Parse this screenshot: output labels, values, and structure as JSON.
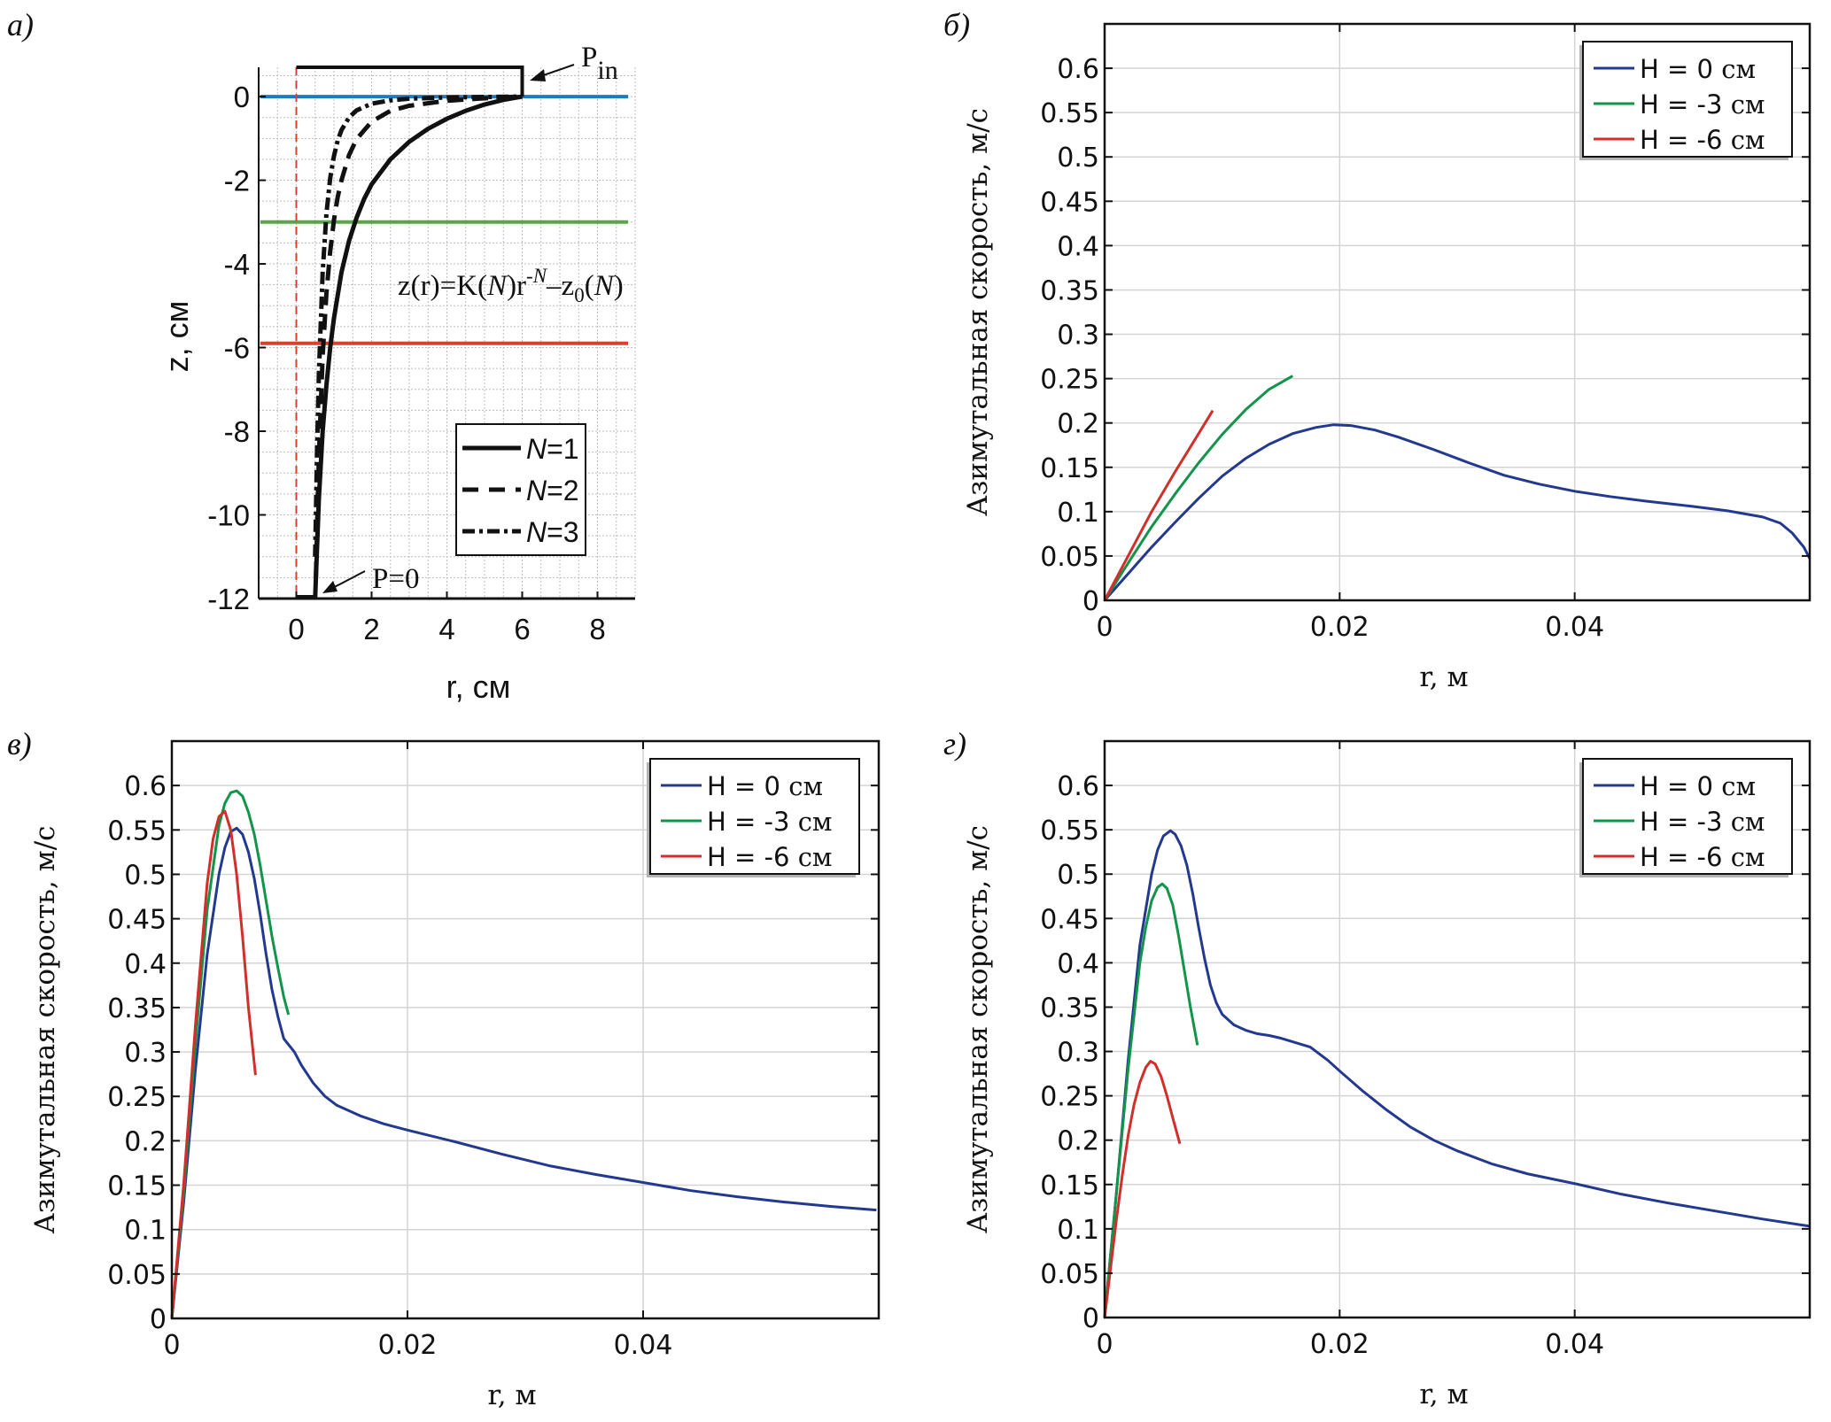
{
  "figure": {
    "panel_labels": [
      "a)",
      "б)",
      "в)",
      "г)"
    ]
  },
  "chart_data": [
    {
      "id": "a",
      "type": "line",
      "panel_label": "a)",
      "title": "",
      "xlabel": "r, см",
      "ylabel": "z, см",
      "xlim": [
        -1,
        9
      ],
      "ylim": [
        -12,
        0.7
      ],
      "xticks": [
        0,
        2,
        4,
        6,
        8
      ],
      "yticks": [
        0,
        -2,
        -4,
        -6,
        -8,
        -10,
        -12
      ],
      "grid": "major+minor (0.5 cm)",
      "equation": "z(r)=K(N)r^-N–z0(N)",
      "equation_parts": {
        "lhs": "z(r)=K(",
        "N1": "N",
        "mid": ")r",
        "sup": "-N",
        "minus": "–z",
        "sub": "0",
        "open": "(",
        "N2": "N",
        "close": ")"
      },
      "annotations": [
        {
          "text": "P",
          "sub": "in",
          "at": [
            6,
            0.35
          ]
        },
        {
          "text": "P=0",
          "at": [
            0.5,
            -12
          ]
        }
      ],
      "horizontal_lines": [
        {
          "name": "H = 0 см",
          "z": 0,
          "color": "#1f7bbf"
        },
        {
          "name": "H = -3 см",
          "z": -3,
          "color": "#5aa546"
        },
        {
          "name": "H = -6 см",
          "z": -5.9,
          "color": "#d9412f"
        }
      ],
      "axis_line": {
        "r": 0,
        "style": "dashed",
        "color": "#d9412f"
      },
      "boundary": {
        "top_z": 0.7,
        "top_r": [
          0,
          6
        ],
        "inlet_r": 6,
        "inlet_z": [
          0,
          0.7
        ],
        "bottom_z": -12,
        "bottom_r": [
          0,
          0.5
        ]
      },
      "legend": {
        "position": "lower-right",
        "entries": [
          {
            "label_italic": "N",
            "label_rest": "=1",
            "style": "solid"
          },
          {
            "label_italic": "N",
            "label_rest": "=2",
            "style": "dashed"
          },
          {
            "label_italic": "N",
            "label_rest": "=3",
            "style": "dashdot"
          }
        ]
      },
      "series": [
        {
          "name": "N=1",
          "style": "solid",
          "x": [
            0.5,
            0.6,
            0.7,
            0.8,
            0.9,
            1.0,
            1.2,
            1.4,
            1.6,
            1.8,
            2.0,
            2.5,
            3.0,
            3.5,
            4.0,
            4.5,
            5.0,
            5.5,
            6.0
          ],
          "y": [
            -12,
            -9.6,
            -8.0,
            -6.9,
            -6.0,
            -5.3,
            -4.2,
            -3.45,
            -2.9,
            -2.45,
            -2.1,
            -1.5,
            -1.08,
            -0.77,
            -0.53,
            -0.34,
            -0.19,
            -0.08,
            0
          ]
        },
        {
          "name": "N=2",
          "style": "dashed",
          "x": [
            0.52,
            0.6,
            0.7,
            0.8,
            0.9,
            1.0,
            1.1,
            1.2,
            1.4,
            1.6,
            2.0,
            2.5,
            3.0,
            4.0,
            5.0,
            6.0
          ],
          "y": [
            -11.5,
            -8.6,
            -6.2,
            -4.7,
            -3.7,
            -2.95,
            -2.4,
            -2.0,
            -1.4,
            -1.02,
            -0.6,
            -0.34,
            -0.22,
            -0.1,
            -0.04,
            0
          ]
        },
        {
          "name": "N=3",
          "style": "dashdot",
          "x": [
            0.5,
            0.55,
            0.6,
            0.7,
            0.8,
            0.9,
            1.0,
            1.1,
            1.2,
            1.4,
            1.6,
            2.0,
            2.5,
            3.0,
            4.0,
            6.0
          ],
          "y": [
            -11.0,
            -8.5,
            -6.6,
            -4.2,
            -2.8,
            -1.95,
            -1.42,
            -1.05,
            -0.8,
            -0.5,
            -0.33,
            -0.17,
            -0.09,
            -0.05,
            -0.02,
            0
          ]
        }
      ]
    },
    {
      "id": "b",
      "type": "line",
      "panel_label": "б)",
      "title": "",
      "xlabel": "r, м",
      "ylabel": "Азимутальная скорость, м/с",
      "xlim": [
        0,
        0.06
      ],
      "ylim": [
        0,
        0.65
      ],
      "xticks": [
        0,
        0.02,
        0.04
      ],
      "xtick_labels": [
        "0",
        "0.02",
        "0.04"
      ],
      "yticks": [
        0,
        0.05,
        0.1,
        0.15,
        0.2,
        0.25,
        0.3,
        0.35,
        0.4,
        0.45,
        0.5,
        0.55,
        0.6
      ],
      "ytick_labels": [
        "0",
        "0.05",
        "0.1",
        "0.15",
        "0.2",
        "0.25",
        "0.3",
        "0.35",
        "0.4",
        "0.45",
        "0.5",
        "0.55",
        "0.6"
      ],
      "grid": true,
      "legend": {
        "position": "top-right",
        "entries": [
          {
            "label": "H = 0 ",
            "unit": "см",
            "color": "#23398f"
          },
          {
            "label": "H = -3 ",
            "unit": "см",
            "color": "#12944a"
          },
          {
            "label": "H = -6 ",
            "unit": "см",
            "color": "#d12f2a"
          }
        ]
      },
      "series": [
        {
          "name": "H = 0 см",
          "color": "#23398f",
          "x": [
            0,
            0.002,
            0.004,
            0.006,
            0.008,
            0.01,
            0.012,
            0.014,
            0.016,
            0.018,
            0.0195,
            0.021,
            0.023,
            0.025,
            0.028,
            0.031,
            0.034,
            0.037,
            0.04,
            0.043,
            0.046,
            0.05,
            0.053,
            0.056,
            0.0575,
            0.0585,
            0.0595,
            0.06
          ],
          "y": [
            0,
            0.03,
            0.06,
            0.088,
            0.115,
            0.14,
            0.16,
            0.176,
            0.188,
            0.195,
            0.198,
            0.197,
            0.192,
            0.184,
            0.17,
            0.155,
            0.141,
            0.131,
            0.123,
            0.117,
            0.112,
            0.106,
            0.101,
            0.094,
            0.087,
            0.076,
            0.06,
            0.047
          ]
        },
        {
          "name": "H = -3 см",
          "color": "#12944a",
          "x": [
            0,
            0.002,
            0.004,
            0.006,
            0.008,
            0.01,
            0.012,
            0.014,
            0.016
          ],
          "y": [
            0,
            0.042,
            0.083,
            0.12,
            0.155,
            0.187,
            0.215,
            0.238,
            0.253
          ]
        },
        {
          "name": "H = -6 см",
          "color": "#d12f2a",
          "x": [
            0,
            0.002,
            0.004,
            0.006,
            0.008,
            0.0092
          ],
          "y": [
            0,
            0.05,
            0.1,
            0.145,
            0.188,
            0.214
          ]
        }
      ]
    },
    {
      "id": "c",
      "type": "line",
      "panel_label": "в)",
      "title": "",
      "xlabel": "r, м",
      "ylabel": "Азимутальная скорость, м/с",
      "xlim": [
        0,
        0.06
      ],
      "ylim": [
        0,
        0.65
      ],
      "xticks": [
        0,
        0.02,
        0.04
      ],
      "xtick_labels": [
        "0",
        "0.02",
        "0.04"
      ],
      "yticks": [
        0,
        0.05,
        0.1,
        0.15,
        0.2,
        0.25,
        0.3,
        0.35,
        0.4,
        0.45,
        0.5,
        0.55,
        0.6
      ],
      "ytick_labels": [
        "0",
        "0.05",
        "0.1",
        "0.15",
        "0.2",
        "0.25",
        "0.3",
        "0.35",
        "0.4",
        "0.45",
        "0.5",
        "0.55",
        "0.6"
      ],
      "grid": true,
      "legend": {
        "position": "top-right",
        "entries": [
          {
            "label": "H = 0 ",
            "unit": "см",
            "color": "#23398f"
          },
          {
            "label": "H = -3 ",
            "unit": "см",
            "color": "#12944a"
          },
          {
            "label": "H = -6 ",
            "unit": "см",
            "color": "#d12f2a"
          }
        ]
      },
      "series": [
        {
          "name": "H = 0 см",
          "color": "#23398f",
          "x": [
            0,
            0.001,
            0.002,
            0.003,
            0.004,
            0.0045,
            0.005,
            0.0055,
            0.006,
            0.0065,
            0.007,
            0.0075,
            0.008,
            0.0085,
            0.009,
            0.0095,
            0.0104,
            0.011,
            0.012,
            0.013,
            0.014,
            0.016,
            0.018,
            0.02,
            0.024,
            0.028,
            0.032,
            0.036,
            0.04,
            0.044,
            0.048,
            0.052,
            0.056,
            0.0598
          ],
          "y": [
            0,
            0.13,
            0.28,
            0.41,
            0.5,
            0.53,
            0.548,
            0.552,
            0.545,
            0.525,
            0.495,
            0.455,
            0.41,
            0.37,
            0.34,
            0.315,
            0.3,
            0.285,
            0.265,
            0.25,
            0.24,
            0.228,
            0.219,
            0.212,
            0.199,
            0.185,
            0.172,
            0.162,
            0.153,
            0.144,
            0.137,
            0.131,
            0.126,
            0.122
          ]
        },
        {
          "name": "H = -3 см",
          "color": "#12944a",
          "x": [
            0,
            0.001,
            0.002,
            0.003,
            0.004,
            0.0045,
            0.005,
            0.0055,
            0.006,
            0.0065,
            0.007,
            0.0075,
            0.008,
            0.0085,
            0.009,
            0.0095,
            0.0099
          ],
          "y": [
            0,
            0.14,
            0.31,
            0.46,
            0.555,
            0.58,
            0.592,
            0.594,
            0.588,
            0.57,
            0.545,
            0.51,
            0.47,
            0.43,
            0.395,
            0.362,
            0.342
          ]
        },
        {
          "name": "H = -6 см",
          "color": "#d12f2a",
          "x": [
            0,
            0.001,
            0.002,
            0.003,
            0.0035,
            0.004,
            0.0045,
            0.005,
            0.0055,
            0.006,
            0.0065,
            0.0071
          ],
          "y": [
            0,
            0.15,
            0.33,
            0.49,
            0.54,
            0.565,
            0.571,
            0.55,
            0.5,
            0.43,
            0.35,
            0.274
          ]
        }
      ]
    },
    {
      "id": "d",
      "type": "line",
      "panel_label": "г)",
      "title": "",
      "xlabel": "r, м",
      "ylabel": "Азимутальная скорость, м/с",
      "xlim": [
        0,
        0.06
      ],
      "ylim": [
        0,
        0.65
      ],
      "xticks": [
        0,
        0.02,
        0.04
      ],
      "xtick_labels": [
        "0",
        "0.02",
        "0.04"
      ],
      "yticks": [
        0,
        0.05,
        0.1,
        0.15,
        0.2,
        0.25,
        0.3,
        0.35,
        0.4,
        0.45,
        0.5,
        0.55,
        0.6
      ],
      "ytick_labels": [
        "0",
        "0.05",
        "0.1",
        "0.15",
        "0.2",
        "0.25",
        "0.3",
        "0.35",
        "0.4",
        "0.45",
        "0.5",
        "0.55",
        "0.6"
      ],
      "grid": true,
      "legend": {
        "position": "top-right",
        "entries": [
          {
            "label": "H = 0 ",
            "unit": "см",
            "color": "#23398f"
          },
          {
            "label": "H = -3 ",
            "unit": "см",
            "color": "#12944a"
          },
          {
            "label": "H = -6 ",
            "unit": "см",
            "color": "#d12f2a"
          }
        ]
      },
      "series": [
        {
          "name": "H = 0 см",
          "color": "#23398f",
          "x": [
            0,
            0.001,
            0.002,
            0.003,
            0.004,
            0.0045,
            0.005,
            0.0056,
            0.006,
            0.0065,
            0.007,
            0.0075,
            0.008,
            0.0085,
            0.009,
            0.0095,
            0.01,
            0.011,
            0.012,
            0.013,
            0.014,
            0.015,
            0.016,
            0.017,
            0.0175,
            0.018,
            0.019,
            0.02,
            0.022,
            0.024,
            0.026,
            0.028,
            0.03,
            0.033,
            0.036,
            0.04,
            0.044,
            0.048,
            0.052,
            0.056,
            0.06
          ],
          "y": [
            0,
            0.14,
            0.29,
            0.42,
            0.5,
            0.527,
            0.543,
            0.549,
            0.545,
            0.532,
            0.51,
            0.478,
            0.44,
            0.405,
            0.375,
            0.355,
            0.342,
            0.33,
            0.324,
            0.32,
            0.318,
            0.315,
            0.311,
            0.307,
            0.305,
            0.3,
            0.29,
            0.278,
            0.255,
            0.234,
            0.215,
            0.2,
            0.188,
            0.173,
            0.162,
            0.151,
            0.139,
            0.129,
            0.12,
            0.111,
            0.103
          ]
        },
        {
          "name": "H = -3 см",
          "color": "#12944a",
          "x": [
            0,
            0.001,
            0.002,
            0.003,
            0.0035,
            0.004,
            0.0045,
            0.0049,
            0.0053,
            0.0058,
            0.0063,
            0.0068,
            0.0073,
            0.0079
          ],
          "y": [
            0,
            0.14,
            0.28,
            0.4,
            0.44,
            0.47,
            0.485,
            0.489,
            0.484,
            0.465,
            0.43,
            0.39,
            0.35,
            0.307
          ]
        },
        {
          "name": "H = -6 см",
          "color": "#d12f2a",
          "x": [
            0,
            0.001,
            0.0015,
            0.002,
            0.0025,
            0.003,
            0.0035,
            0.0039,
            0.0043,
            0.0048,
            0.0053,
            0.0058,
            0.0064
          ],
          "y": [
            0,
            0.11,
            0.16,
            0.205,
            0.24,
            0.265,
            0.282,
            0.289,
            0.286,
            0.272,
            0.25,
            0.225,
            0.196
          ]
        }
      ]
    }
  ]
}
